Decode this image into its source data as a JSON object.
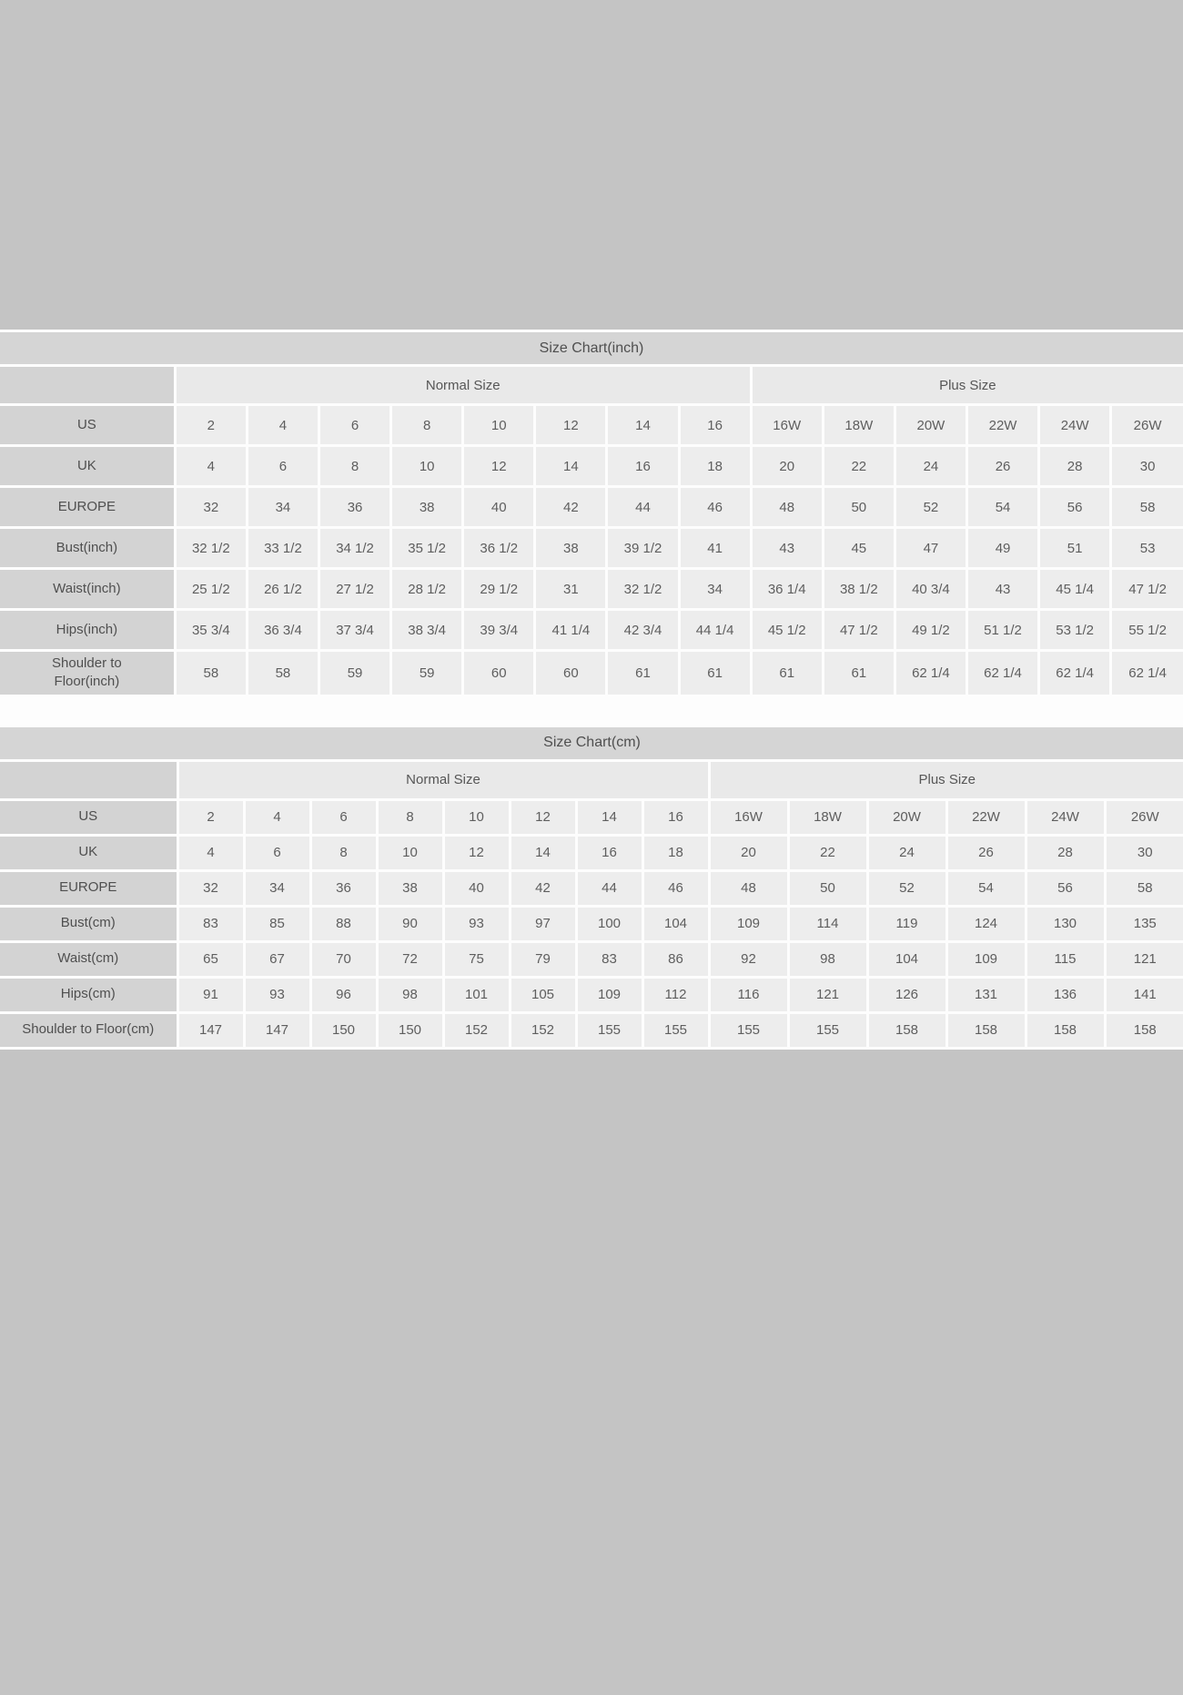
{
  "page": {
    "background_color": "#c4c4c4",
    "panel_color": "#fdfdfd",
    "header_cell_color": "#d3d3d3",
    "data_cell_color": "#ededed"
  },
  "tables": [
    {
      "title": "Size Chart(inch)",
      "group_headers": [
        {
          "label": "Normal Size",
          "span": 8
        },
        {
          "label": "Plus Size",
          "span": 6
        }
      ],
      "rows": [
        {
          "label": "US",
          "values": [
            "2",
            "4",
            "6",
            "8",
            "10",
            "12",
            "14",
            "16",
            "16W",
            "18W",
            "20W",
            "22W",
            "24W",
            "26W"
          ]
        },
        {
          "label": "UK",
          "values": [
            "4",
            "6",
            "8",
            "10",
            "12",
            "14",
            "16",
            "18",
            "20",
            "22",
            "24",
            "26",
            "28",
            "30"
          ]
        },
        {
          "label": "EUROPE",
          "values": [
            "32",
            "34",
            "36",
            "38",
            "40",
            "42",
            "44",
            "46",
            "48",
            "50",
            "52",
            "54",
            "56",
            "58"
          ]
        },
        {
          "label": "Bust(inch)",
          "values": [
            "32 1/2",
            "33 1/2",
            "34 1/2",
            "35 1/2",
            "36 1/2",
            "38",
            "39 1/2",
            "41",
            "43",
            "45",
            "47",
            "49",
            "51",
            "53"
          ]
        },
        {
          "label": "Waist(inch)",
          "values": [
            "25 1/2",
            "26 1/2",
            "27 1/2",
            "28 1/2",
            "29 1/2",
            "31",
            "32 1/2",
            "34",
            "36 1/4",
            "38 1/2",
            "40 3/4",
            "43",
            "45 1/4",
            "47 1/2"
          ]
        },
        {
          "label": "Hips(inch)",
          "values": [
            "35 3/4",
            "36 3/4",
            "37 3/4",
            "38 3/4",
            "39 3/4",
            "41 1/4",
            "42 3/4",
            "44 1/4",
            "45 1/2",
            "47 1/2",
            "49 1/2",
            "51 1/2",
            "53 1/2",
            "55 1/2"
          ]
        },
        {
          "label": "Shoulder to Floor(inch)",
          "values": [
            "58",
            "58",
            "59",
            "59",
            "60",
            "60",
            "61",
            "61",
            "61",
            "61",
            "62 1/4",
            "62 1/4",
            "62 1/4",
            "62 1/4"
          ]
        }
      ]
    },
    {
      "title": "Size Chart(cm)",
      "group_headers": [
        {
          "label": "Normal Size",
          "span": 8
        },
        {
          "label": "Plus Size",
          "span": 6
        }
      ],
      "rows": [
        {
          "label": "US",
          "values": [
            "2",
            "4",
            "6",
            "8",
            "10",
            "12",
            "14",
            "16",
            "16W",
            "18W",
            "20W",
            "22W",
            "24W",
            "26W"
          ]
        },
        {
          "label": "UK",
          "values": [
            "4",
            "6",
            "8",
            "10",
            "12",
            "14",
            "16",
            "18",
            "20",
            "22",
            "24",
            "26",
            "28",
            "30"
          ]
        },
        {
          "label": "EUROPE",
          "values": [
            "32",
            "34",
            "36",
            "38",
            "40",
            "42",
            "44",
            "46",
            "48",
            "50",
            "52",
            "54",
            "56",
            "58"
          ]
        },
        {
          "label": "Bust(cm)",
          "values": [
            "83",
            "85",
            "88",
            "90",
            "93",
            "97",
            "100",
            "104",
            "109",
            "114",
            "119",
            "124",
            "130",
            "135"
          ]
        },
        {
          "label": "Waist(cm)",
          "values": [
            "65",
            "67",
            "70",
            "72",
            "75",
            "79",
            "83",
            "86",
            "92",
            "98",
            "104",
            "109",
            "115",
            "121"
          ]
        },
        {
          "label": "Hips(cm)",
          "values": [
            "91",
            "93",
            "96",
            "98",
            "101",
            "105",
            "109",
            "112",
            "116",
            "121",
            "126",
            "131",
            "136",
            "141"
          ]
        },
        {
          "label": "Shoulder to Floor(cm)",
          "values": [
            "147",
            "147",
            "150",
            "150",
            "152",
            "152",
            "155",
            "155",
            "155",
            "155",
            "158",
            "158",
            "158",
            "158"
          ]
        }
      ]
    }
  ]
}
